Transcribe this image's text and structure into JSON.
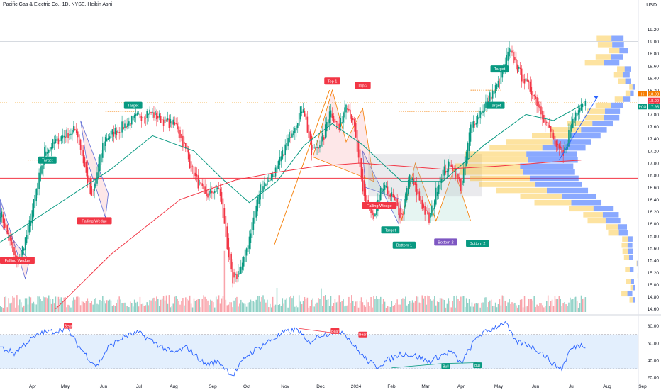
{
  "header": {
    "title": "Pacific Gas & Electric Co., 1D, NYSE, Heikin Ashi",
    "currency": "USD"
  },
  "chart_data": {
    "type": "candlestick",
    "ticker": "PCG",
    "price_axis": {
      "ticks": [
        "19.20",
        "19.00",
        "18.80",
        "18.60",
        "18.40",
        "18.20",
        "18.00",
        "17.80",
        "17.60",
        "17.40",
        "17.20",
        "17.00",
        "16.80",
        "16.60",
        "16.40",
        "16.20",
        "16.00",
        "15.80",
        "15.60",
        "15.40",
        "15.20",
        "15.00",
        "14.80",
        "14.60"
      ],
      "range": [
        14.55,
        19.45
      ]
    },
    "price_labels": [
      {
        "tag": "Hi",
        "value": "18.08",
        "color": "#f57c00"
      },
      {
        "tag": "",
        "value": "18.00",
        "color": "#f23645"
      },
      {
        "tag": "PCG",
        "value": "17.95",
        "color": "#089981"
      }
    ],
    "time_axis": [
      "Apr",
      "May",
      "Jun",
      "Jul",
      "Aug",
      "Sep",
      "Oct",
      "Nov",
      "Dec",
      "2024",
      "Feb",
      "Mar",
      "Apr",
      "May",
      "Jun",
      "Jul",
      "Aug",
      "Sep"
    ],
    "price_series": {
      "name": "PCG",
      "close_waypoints": [
        [
          0,
          16.2
        ],
        [
          12,
          15.3
        ],
        [
          20,
          15.9
        ],
        [
          32,
          17.2
        ],
        [
          45,
          17.45
        ],
        [
          55,
          17.55
        ],
        [
          66,
          16.4
        ],
        [
          75,
          17.4
        ],
        [
          85,
          17.55
        ],
        [
          95,
          17.7
        ],
        [
          107,
          17.85
        ],
        [
          118,
          17.7
        ],
        [
          128,
          17.6
        ],
        [
          140,
          16.8
        ],
        [
          148,
          16.45
        ],
        [
          158,
          16.6
        ],
        [
          168,
          15.0
        ],
        [
          176,
          15.4
        ],
        [
          188,
          16.6
        ],
        [
          200,
          16.9
        ],
        [
          210,
          17.5
        ],
        [
          219,
          17.95
        ],
        [
          225,
          17.15
        ],
        [
          234,
          17.45
        ],
        [
          238,
          17.9
        ],
        [
          245,
          17.55
        ],
        [
          250,
          18.05
        ],
        [
          256,
          17.55
        ],
        [
          262,
          16.5
        ],
        [
          270,
          16.05
        ],
        [
          276,
          16.6
        ],
        [
          283,
          16.45
        ],
        [
          290,
          16.1
        ],
        [
          296,
          16.8
        ],
        [
          303,
          16.4
        ],
        [
          310,
          16.05
        ],
        [
          318,
          16.8
        ],
        [
          326,
          17.0
        ],
        [
          333,
          16.6
        ],
        [
          340,
          17.6
        ],
        [
          350,
          17.95
        ],
        [
          360,
          18.3
        ],
        [
          368,
          18.85
        ],
        [
          375,
          18.5
        ],
        [
          386,
          18.1
        ],
        [
          394,
          17.7
        ],
        [
          402,
          17.25
        ],
        [
          407,
          17.1
        ],
        [
          412,
          17.6
        ],
        [
          418,
          17.95
        ],
        [
          420,
          18.0
        ]
      ]
    },
    "moving_averages": [
      {
        "color": "#089981",
        "values": [
          [
            0,
            15.7
          ],
          [
            40,
            16.3
          ],
          [
            80,
            16.9
          ],
          [
            110,
            17.45
          ],
          [
            140,
            17.2
          ],
          [
            160,
            16.75
          ],
          [
            180,
            16.35
          ],
          [
            200,
            16.7
          ],
          [
            220,
            17.3
          ],
          [
            240,
            17.65
          ],
          [
            262,
            17.3
          ],
          [
            290,
            16.7
          ],
          [
            320,
            16.7
          ],
          [
            350,
            17.3
          ],
          [
            380,
            17.8
          ],
          [
            400,
            17.7
          ],
          [
            420,
            17.95
          ]
        ]
      },
      {
        "color": "#f23645",
        "values": [
          [
            40,
            14.6
          ],
          [
            80,
            15.5
          ],
          [
            130,
            16.4
          ],
          [
            170,
            16.72
          ],
          [
            200,
            16.85
          ],
          [
            230,
            16.95
          ],
          [
            260,
            17.0
          ],
          [
            290,
            16.95
          ],
          [
            320,
            16.9
          ],
          [
            360,
            16.95
          ],
          [
            400,
            17.02
          ],
          [
            420,
            17.05
          ]
        ]
      }
    ],
    "horizontal_line": {
      "value": 16.75,
      "color": "#f23645"
    },
    "rsi": {
      "ticks": [
        "80.00",
        "60.00",
        "40.00",
        "20.00"
      ],
      "band": [
        30,
        70
      ],
      "range": [
        15,
        88
      ],
      "waypoints": [
        [
          0,
          55
        ],
        [
          10,
          48
        ],
        [
          20,
          62
        ],
        [
          30,
          72
        ],
        [
          40,
          74
        ],
        [
          48,
          78
        ],
        [
          55,
          60
        ],
        [
          65,
          40
        ],
        [
          70,
          33
        ],
        [
          78,
          55
        ],
        [
          90,
          68
        ],
        [
          100,
          72
        ],
        [
          112,
          60
        ],
        [
          125,
          48
        ],
        [
          135,
          55
        ],
        [
          148,
          35
        ],
        [
          158,
          38
        ],
        [
          168,
          22
        ],
        [
          178,
          45
        ],
        [
          190,
          58
        ],
        [
          205,
          72
        ],
        [
          215,
          76
        ],
        [
          222,
          60
        ],
        [
          232,
          70
        ],
        [
          240,
          72
        ],
        [
          248,
          74
        ],
        [
          258,
          52
        ],
        [
          265,
          40
        ],
        [
          272,
          32
        ],
        [
          280,
          40
        ],
        [
          290,
          48
        ],
        [
          300,
          45
        ],
        [
          310,
          38
        ],
        [
          318,
          45
        ],
        [
          326,
          50
        ],
        [
          333,
          36
        ],
        [
          345,
          68
        ],
        [
          355,
          76
        ],
        [
          365,
          85
        ],
        [
          372,
          62
        ],
        [
          382,
          58
        ],
        [
          392,
          48
        ],
        [
          400,
          35
        ],
        [
          406,
          30
        ],
        [
          412,
          52
        ],
        [
          418,
          58
        ],
        [
          422,
          57
        ]
      ]
    },
    "annotations": [
      {
        "text": "Falling Wedge",
        "type": "pattern"
      },
      {
        "text": "Target",
        "type": "target"
      },
      {
        "text": "Falling Wedge",
        "type": "pattern"
      },
      {
        "text": "Target",
        "type": "target"
      },
      {
        "text": "Top 1",
        "type": "top"
      },
      {
        "text": "Top 2",
        "type": "top"
      },
      {
        "text": "Falling Wedge",
        "type": "pattern"
      },
      {
        "text": "Target",
        "type": "target"
      },
      {
        "text": "Bottom 1",
        "type": "bottom"
      },
      {
        "text": "Bottom 2",
        "type": "bottom2"
      },
      {
        "text": "Bottom 2",
        "type": "bottom"
      },
      {
        "text": "Target",
        "type": "target"
      },
      {
        "text": "Target",
        "type": "target"
      }
    ],
    "rsi_annotations": [
      {
        "text": "Bear",
        "type": "bear"
      },
      {
        "text": "Bear",
        "type": "bear"
      },
      {
        "text": "Bear",
        "type": "bear"
      },
      {
        "text": "Bull",
        "type": "bull"
      },
      {
        "text": "Bull",
        "type": "bull"
      }
    ],
    "colors": {
      "up": "#089981",
      "down": "#f23645",
      "volume_profile_up": "#fbc02d",
      "volume_profile_down": "#2962ff",
      "rsi_line": "#2962ff",
      "rsi_band": "#e3effd"
    }
  }
}
